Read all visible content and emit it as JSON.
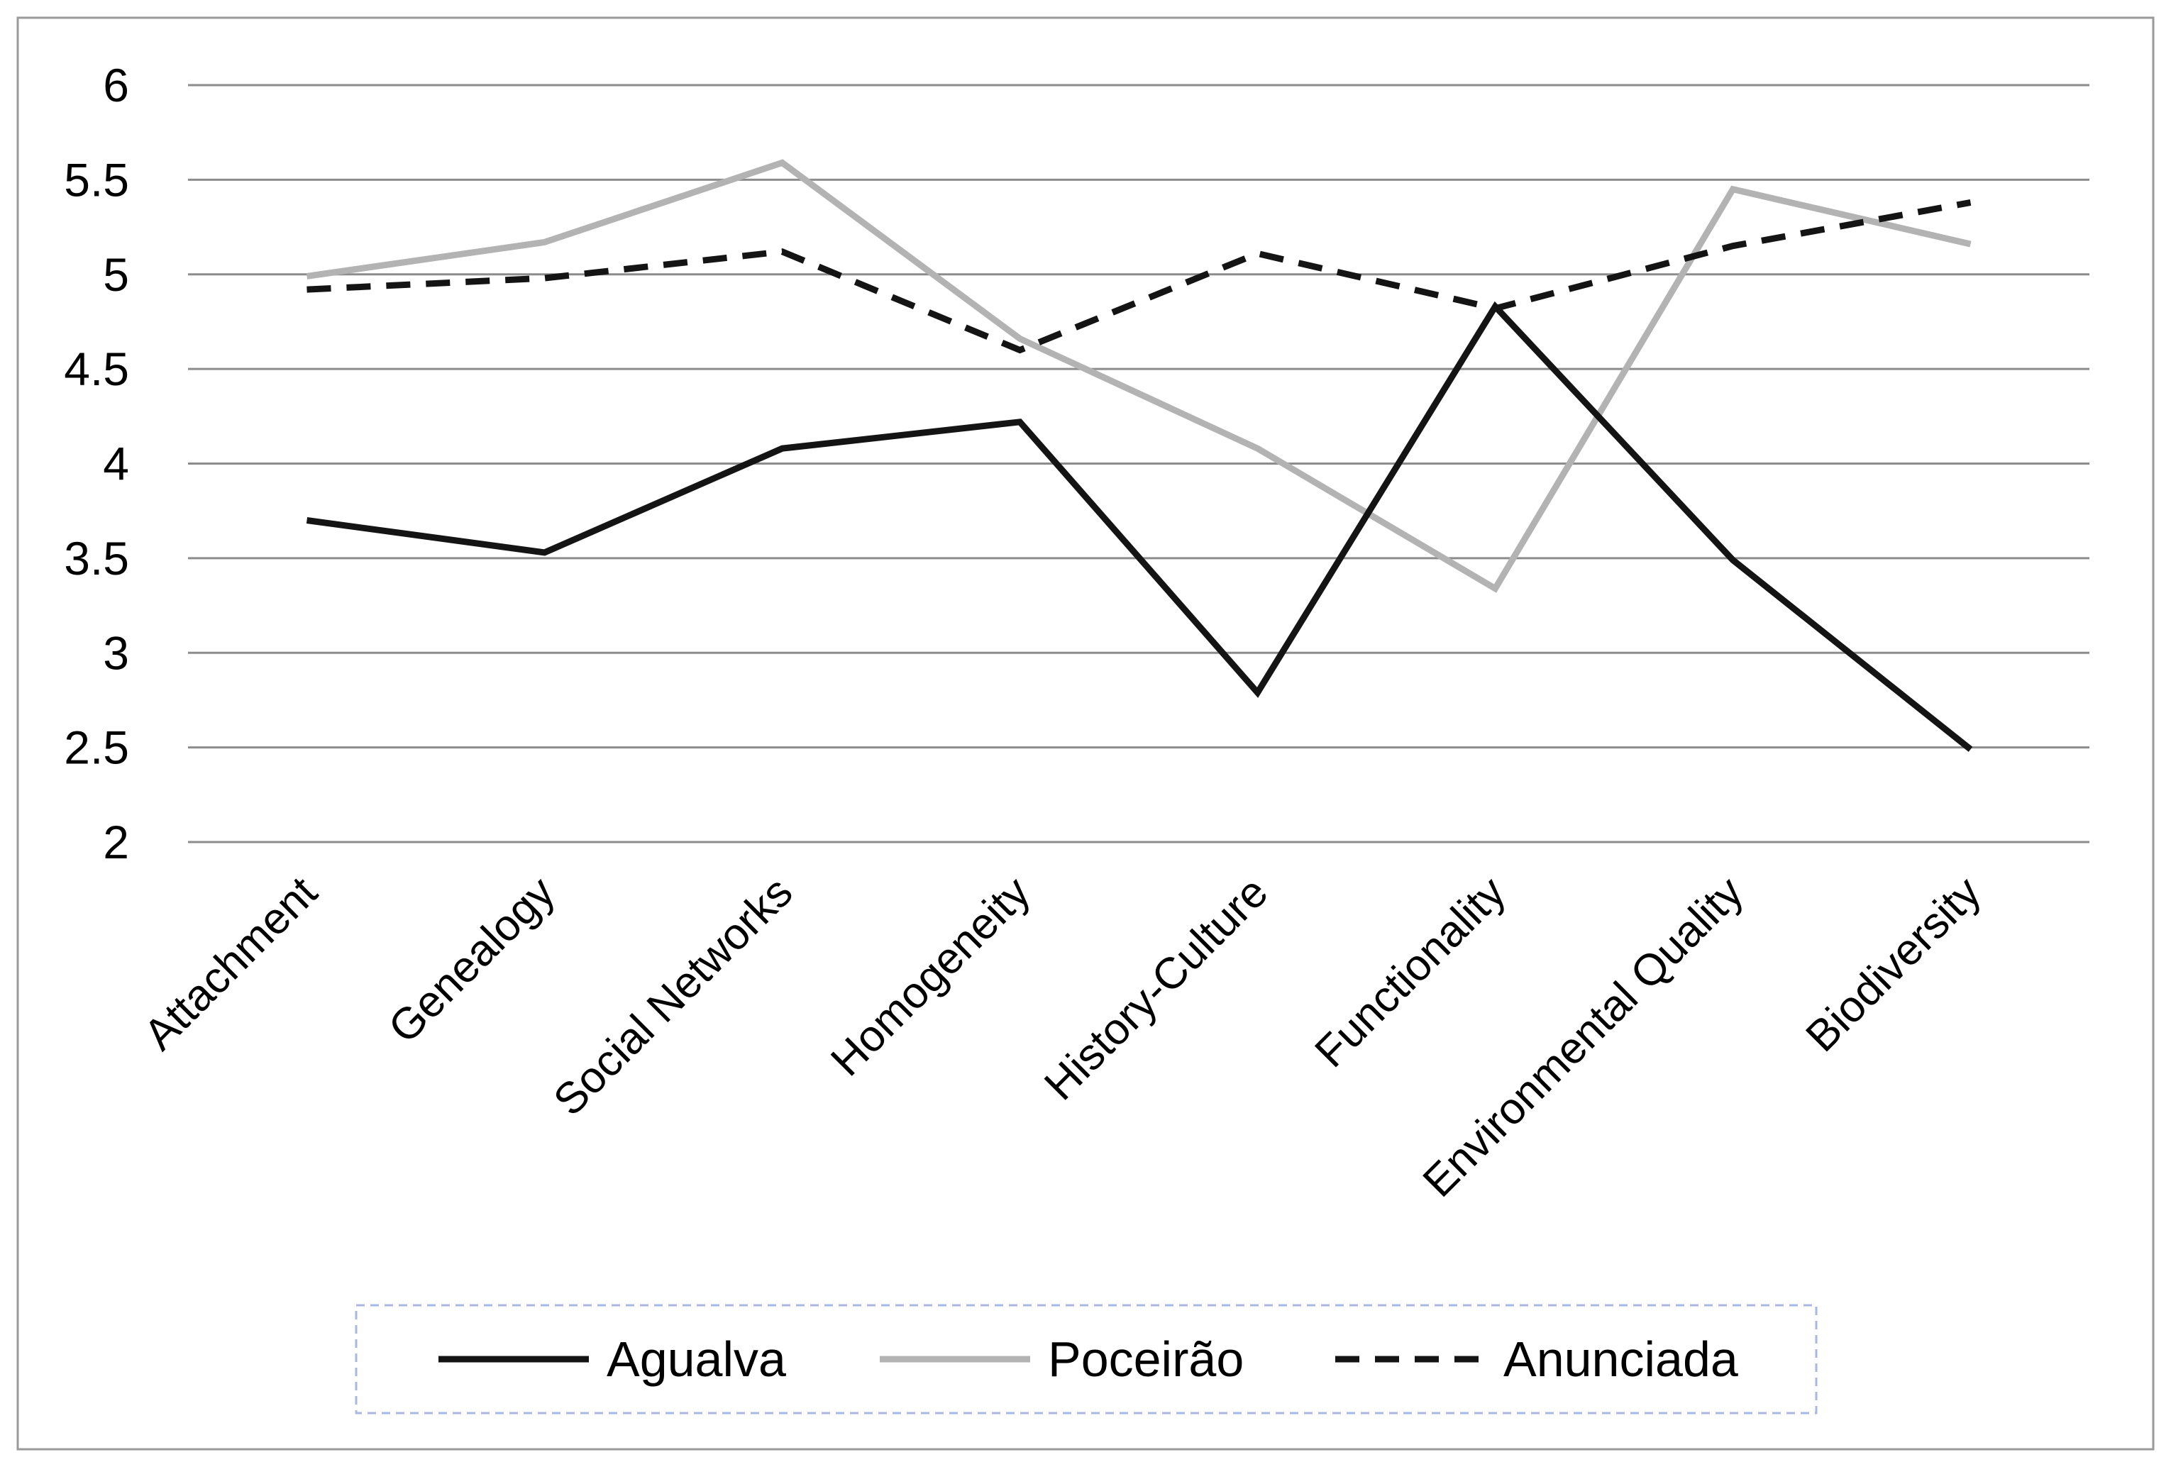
{
  "chart_data": {
    "type": "line",
    "categories": [
      "Attachment",
      "Genealogy",
      "Social Networks",
      "Homogeneity",
      "History-Culture",
      "Functionality",
      "Environmental Quality",
      "Biodiversity"
    ],
    "ylim": [
      2,
      6
    ],
    "yticks": [
      "2",
      "2.5",
      "3",
      "3.5",
      "4",
      "4.5",
      "5",
      "5.5",
      "6"
    ],
    "grid": true,
    "legend_position": "bottom",
    "series": [
      {
        "name": "Agualva",
        "color": "#141414",
        "dash": "solid",
        "values": [
          3.7,
          3.53,
          4.08,
          4.22,
          2.79,
          4.83,
          3.49,
          2.49
        ]
      },
      {
        "name": "Poceirão",
        "color": "#b3b3b3",
        "dash": "solid",
        "values": [
          4.99,
          5.17,
          5.59,
          4.66,
          4.08,
          3.34,
          5.45,
          5.16
        ]
      },
      {
        "name": "Anunciada",
        "color": "#141414",
        "dash": "dashed",
        "values": [
          4.92,
          4.98,
          5.12,
          4.6,
          5.11,
          4.82,
          5.15,
          5.38
        ]
      }
    ],
    "legend": {
      "labels": [
        "Agualva",
        "Poceirão",
        "Anunciada"
      ]
    }
  }
}
